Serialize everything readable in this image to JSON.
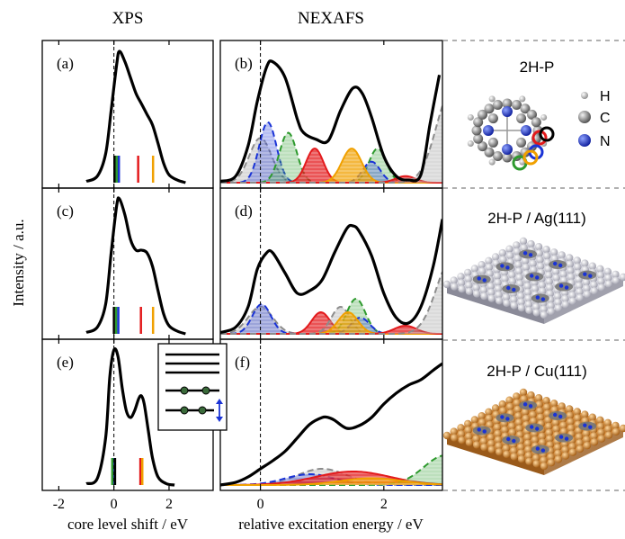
{
  "column_titles": {
    "xps": "XPS",
    "nexafs": "NEXAFS"
  },
  "y_axis_label": "Intensity / a.u.",
  "xps_axis": {
    "label": "core level shift / eV",
    "xlim": [
      -2.6,
      3.6
    ],
    "ticks": [
      -2,
      0,
      2
    ],
    "tick_labels": [
      "-2",
      "0",
      "2"
    ]
  },
  "nexafs_axis": {
    "label": "relative excitation energy / eV",
    "xlim": [
      -0.65,
      2.95
    ],
    "ticks": [
      0,
      2
    ],
    "tick_labels": [
      "0",
      "2"
    ]
  },
  "colors": {
    "black": "#000000",
    "blue": "#1a33d6",
    "green": "#2e9a2e",
    "red": "#e31a1c",
    "orange": "#f0a000",
    "gray": "#8c8c8c"
  },
  "legend": {
    "line_styles": [
      "solid",
      "solid",
      "solid",
      "molecule-flat",
      "molecule-tilted"
    ]
  },
  "side_labels": {
    "row1": "2H-P",
    "row2": "2H-P / Ag(111)",
    "row3": "2H-P / Cu(111)",
    "atom_h": "H",
    "atom_c": "C",
    "atom_n": "N"
  },
  "chart_data": [
    {
      "panel": "(a)",
      "type": "line",
      "technique": "XPS",
      "system": "2H-P",
      "xlim": [
        -2.6,
        3.6
      ],
      "total_spectrum": {
        "x": [
          -1.0,
          -0.6,
          -0.3,
          -0.1,
          0.1,
          0.2,
          0.4,
          0.6,
          0.8,
          1.0,
          1.2,
          1.4,
          1.6,
          1.8,
          2.0,
          2.3,
          2.6
        ],
        "y": [
          0.01,
          0.05,
          0.22,
          0.55,
          0.9,
          1.0,
          0.92,
          0.8,
          0.68,
          0.6,
          0.52,
          0.44,
          0.3,
          0.15,
          0.06,
          0.02,
          0.0
        ]
      },
      "component_positions": [
        {
          "color": "black",
          "x": 0.02
        },
        {
          "color": "green",
          "x": 0.1
        },
        {
          "color": "blue",
          "x": 0.18
        },
        {
          "color": "red",
          "x": 0.88
        },
        {
          "color": "orange",
          "x": 1.42
        }
      ]
    },
    {
      "panel": "(b)",
      "type": "area",
      "technique": "NEXAFS",
      "system": "2H-P",
      "xlim": [
        -0.65,
        2.95
      ],
      "total_spectrum": {
        "x": [
          -0.65,
          -0.4,
          -0.2,
          -0.05,
          0.1,
          0.2,
          0.4,
          0.6,
          0.7,
          0.9,
          1.1,
          1.3,
          1.5,
          1.65,
          1.8,
          2.0,
          2.2,
          2.4,
          2.6,
          2.75,
          2.9
        ],
        "y": [
          0.01,
          0.05,
          0.28,
          0.62,
          0.88,
          0.92,
          0.8,
          0.48,
          0.38,
          0.33,
          0.32,
          0.55,
          0.72,
          0.68,
          0.5,
          0.2,
          0.05,
          0.02,
          0.06,
          0.45,
          0.82
        ]
      },
      "components": [
        {
          "color": "gray",
          "center": 0.0,
          "height": 0.34,
          "width": 0.18,
          "dashed": true
        },
        {
          "color": "blue",
          "center": 0.12,
          "height": 0.46,
          "width": 0.14,
          "dashed": true
        },
        {
          "color": "green",
          "center": 0.45,
          "height": 0.38,
          "width": 0.14,
          "dashed": true
        },
        {
          "color": "red",
          "center": 0.88,
          "height": 0.26,
          "width": 0.14,
          "dashed": false
        },
        {
          "color": "green",
          "center": 1.9,
          "height": 0.26,
          "width": 0.14,
          "dashed": true
        },
        {
          "color": "blue",
          "center": 1.8,
          "height": 0.16,
          "width": 0.14,
          "dashed": true
        },
        {
          "color": "orange",
          "center": 1.48,
          "height": 0.26,
          "width": 0.16,
          "dashed": false
        },
        {
          "color": "red",
          "center": 2.35,
          "height": 0.05,
          "width": 0.16,
          "dashed": false
        },
        {
          "color": "gray",
          "center": 3.1,
          "height": 0.7,
          "width": 0.25,
          "dashed": true
        }
      ]
    },
    {
      "panel": "(c)",
      "type": "line",
      "technique": "XPS",
      "system": "2H-P / Ag(111)",
      "xlim": [
        -2.6,
        3.6
      ],
      "total_spectrum": {
        "x": [
          -1.0,
          -0.6,
          -0.3,
          -0.1,
          0.1,
          0.2,
          0.4,
          0.6,
          0.8,
          1.0,
          1.2,
          1.4,
          1.6,
          1.8,
          2.0,
          2.3,
          2.6
        ],
        "y": [
          0.01,
          0.05,
          0.22,
          0.6,
          0.95,
          1.0,
          0.88,
          0.7,
          0.62,
          0.62,
          0.6,
          0.5,
          0.32,
          0.15,
          0.06,
          0.02,
          0.0
        ]
      },
      "component_positions": [
        {
          "color": "black",
          "x": 0.0
        },
        {
          "color": "green",
          "x": 0.08
        },
        {
          "color": "blue",
          "x": 0.16
        },
        {
          "color": "red",
          "x": 0.98
        },
        {
          "color": "orange",
          "x": 1.42
        }
      ]
    },
    {
      "panel": "(d)",
      "type": "area",
      "technique": "NEXAFS",
      "system": "2H-P / Ag(111)",
      "xlim": [
        -0.65,
        2.95
      ],
      "total_spectrum": {
        "x": [
          -0.65,
          -0.4,
          -0.2,
          -0.05,
          0.1,
          0.2,
          0.4,
          0.6,
          0.8,
          1.0,
          1.2,
          1.4,
          1.5,
          1.6,
          1.8,
          2.0,
          2.2,
          2.4,
          2.6,
          2.8,
          2.95
        ],
        "y": [
          0.01,
          0.05,
          0.2,
          0.48,
          0.6,
          0.6,
          0.45,
          0.3,
          0.32,
          0.4,
          0.6,
          0.78,
          0.8,
          0.76,
          0.58,
          0.3,
          0.12,
          0.08,
          0.2,
          0.5,
          0.85
        ]
      },
      "components": [
        {
          "color": "gray",
          "center": 0.0,
          "height": 0.2,
          "width": 0.2,
          "dashed": true
        },
        {
          "color": "blue",
          "center": 0.02,
          "height": 0.22,
          "width": 0.15,
          "dashed": true
        },
        {
          "color": "red",
          "center": 0.98,
          "height": 0.16,
          "width": 0.15,
          "dashed": false
        },
        {
          "color": "gray",
          "center": 1.3,
          "height": 0.2,
          "width": 0.15,
          "dashed": true
        },
        {
          "color": "green",
          "center": 1.55,
          "height": 0.26,
          "width": 0.15,
          "dashed": true
        },
        {
          "color": "blue",
          "center": 1.62,
          "height": 0.12,
          "width": 0.15,
          "dashed": true
        },
        {
          "color": "orange",
          "center": 1.42,
          "height": 0.16,
          "width": 0.16,
          "dashed": false
        },
        {
          "color": "red",
          "center": 2.35,
          "height": 0.06,
          "width": 0.18,
          "dashed": false
        },
        {
          "color": "gray",
          "center": 3.1,
          "height": 0.55,
          "width": 0.25,
          "dashed": true
        }
      ]
    },
    {
      "panel": "(e)",
      "type": "line",
      "technique": "XPS",
      "system": "2H-P / Cu(111)",
      "xlim": [
        -2.6,
        3.6
      ],
      "total_spectrum": {
        "x": [
          -1.0,
          -0.6,
          -0.3,
          -0.15,
          0.0,
          0.15,
          0.3,
          0.45,
          0.6,
          0.75,
          0.9,
          1.0,
          1.1,
          1.25,
          1.4,
          1.6,
          1.9,
          2.2
        ],
        "y": [
          0.01,
          0.05,
          0.35,
          0.8,
          1.0,
          0.95,
          0.72,
          0.55,
          0.5,
          0.55,
          0.64,
          0.66,
          0.6,
          0.4,
          0.2,
          0.06,
          0.01,
          0.0
        ]
      },
      "component_positions": [
        {
          "color": "green",
          "x": -0.06
        },
        {
          "color": "blue",
          "x": 0.02
        },
        {
          "color": "black",
          "x": 0.04
        },
        {
          "color": "red",
          "x": 0.96
        },
        {
          "color": "orange",
          "x": 1.03
        }
      ]
    },
    {
      "panel": "(f)",
      "type": "area",
      "technique": "NEXAFS",
      "system": "2H-P / Cu(111)",
      "xlim": [
        -0.65,
        2.95
      ],
      "total_spectrum": {
        "x": [
          -0.65,
          -0.4,
          -0.2,
          0.0,
          0.2,
          0.4,
          0.6,
          0.8,
          1.0,
          1.1,
          1.2,
          1.4,
          1.6,
          1.8,
          2.0,
          2.2,
          2.4,
          2.6,
          2.8,
          2.95
        ],
        "y": [
          0.0,
          0.02,
          0.06,
          0.12,
          0.18,
          0.25,
          0.35,
          0.45,
          0.5,
          0.5,
          0.48,
          0.42,
          0.44,
          0.5,
          0.6,
          0.68,
          0.74,
          0.78,
          0.85,
          0.9
        ]
      },
      "components": [
        {
          "color": "gray",
          "center": 1.0,
          "height": 0.12,
          "width": 0.4,
          "dashed": true
        },
        {
          "color": "blue",
          "center": 0.8,
          "height": 0.08,
          "width": 0.4,
          "dashed": true
        },
        {
          "color": "red",
          "center": 1.5,
          "height": 0.1,
          "width": 0.6,
          "dashed": false
        },
        {
          "color": "green",
          "center": 3.0,
          "height": 0.22,
          "width": 0.35,
          "dashed": true
        },
        {
          "color": "orange",
          "center": 1.8,
          "height": 0.05,
          "width": 0.5,
          "dashed": false
        }
      ]
    }
  ]
}
